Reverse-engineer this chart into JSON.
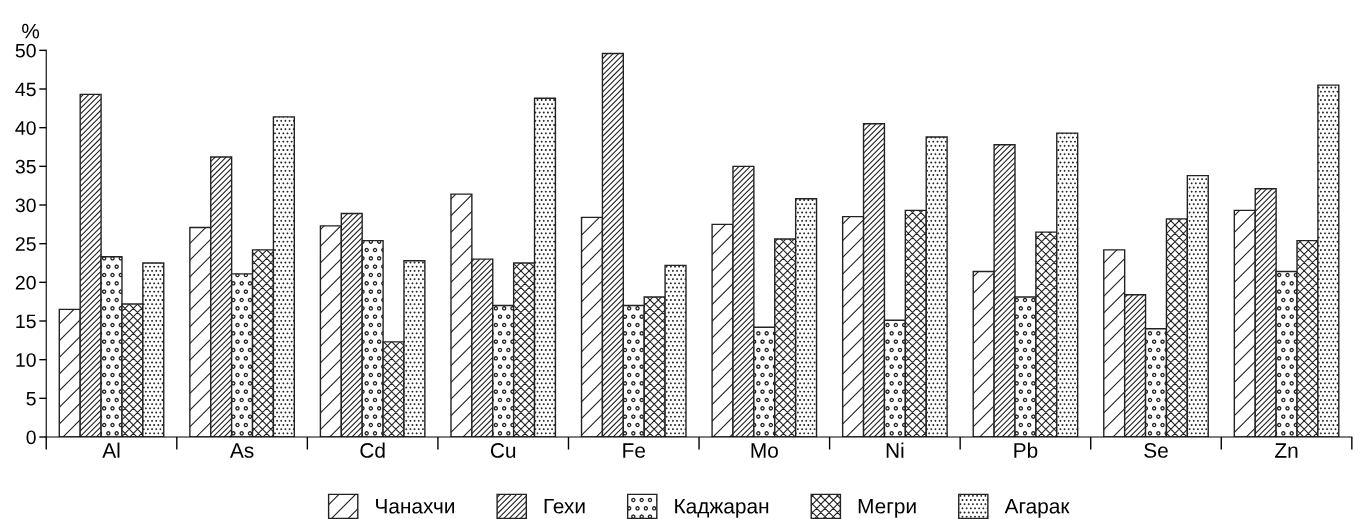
{
  "chart_data": {
    "type": "bar",
    "ylabel": "%",
    "categories": [
      "Al",
      "As",
      "Cd",
      "Cu",
      "Fe",
      "Mo",
      "Ni",
      "Pb",
      "Se",
      "Zn"
    ],
    "series": [
      {
        "name": "Чанахчи",
        "color": "#222222",
        "values": [
          16.5,
          27.1,
          27.3,
          31.4,
          28.4,
          27.5,
          28.5,
          21.4,
          24.2,
          29.3
        ]
      },
      {
        "name": "Гехи",
        "color": "#222222",
        "values": [
          44.3,
          36.2,
          28.9,
          23.0,
          49.6,
          35.0,
          40.5,
          37.8,
          18.4,
          32.1
        ]
      },
      {
        "name": "Каджаран",
        "color": "#222222",
        "values": [
          23.3,
          21.1,
          25.4,
          17.0,
          17.0,
          14.2,
          15.1,
          18.1,
          14.0,
          21.4
        ]
      },
      {
        "name": "Мегри",
        "color": "#222222",
        "values": [
          17.2,
          24.2,
          12.3,
          22.5,
          18.1,
          25.6,
          29.3,
          26.5,
          28.2,
          25.4
        ]
      },
      {
        "name": "Агарак",
        "color": "#222222",
        "values": [
          22.5,
          41.4,
          22.8,
          43.8,
          22.2,
          30.8,
          38.8,
          39.3,
          33.8,
          45.5
        ]
      }
    ],
    "ylim": [
      0,
      50
    ],
    "yticks": [
      0,
      5,
      10,
      15,
      20,
      25,
      30,
      35,
      40,
      45,
      50
    ],
    "grid": false,
    "legend": "bottom"
  }
}
